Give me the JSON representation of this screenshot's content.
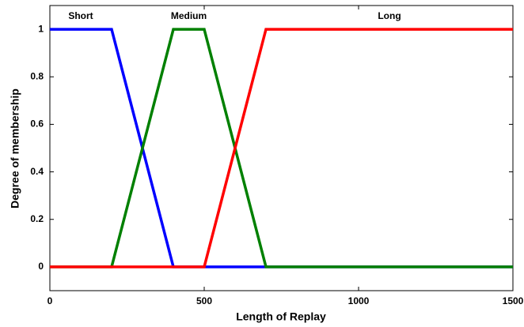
{
  "chart_data": {
    "type": "line",
    "x_label": "Length of Replay",
    "y_label": "Degree of membership",
    "series": [
      {
        "name": "Short",
        "color": "#0000ff",
        "x": [
          0,
          200,
          400,
          1500
        ],
        "values": [
          1,
          1,
          0,
          0
        ]
      },
      {
        "name": "Medium",
        "color": "#008000",
        "x": [
          0,
          200,
          400,
          500,
          700,
          1500
        ],
        "values": [
          0,
          0,
          1,
          1,
          0,
          0
        ]
      },
      {
        "name": "Long",
        "color": "#ff0000",
        "x": [
          0,
          500,
          700,
          1500
        ],
        "values": [
          0,
          0,
          1,
          1
        ]
      }
    ],
    "xlim": [
      0,
      1500
    ],
    "xticks": [
      0,
      500,
      1000,
      1500
    ],
    "ylim": [
      -0.1,
      1.1
    ],
    "yticks": [
      0,
      0.2,
      0.4,
      0.6,
      0.8,
      1
    ],
    "grid": false
  }
}
